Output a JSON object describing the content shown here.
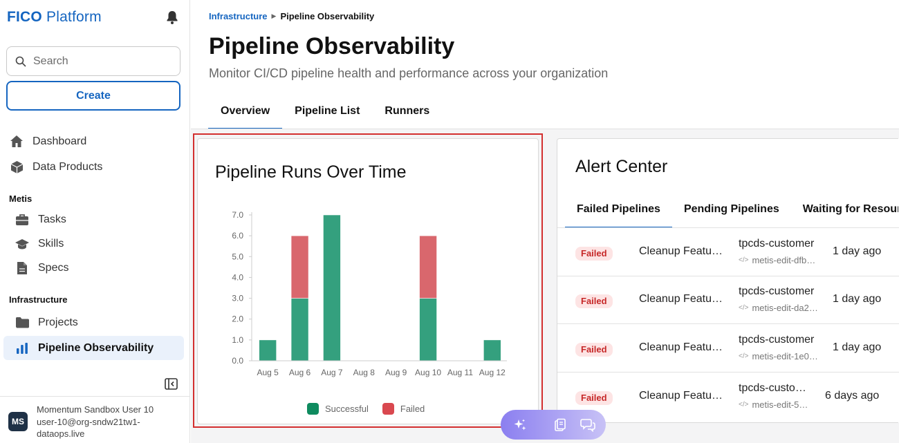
{
  "app": {
    "brand_bold": "FICO",
    "brand_rest": "Platform"
  },
  "sidebar": {
    "search_placeholder": "Search",
    "create_label": "Create",
    "top_items": [
      {
        "label": "Dashboard",
        "icon": "home-icon"
      },
      {
        "label": "Data Products",
        "icon": "cube-icon"
      }
    ],
    "sections": [
      {
        "label": "Metis",
        "items": [
          {
            "label": "Tasks",
            "icon": "briefcase-icon"
          },
          {
            "label": "Skills",
            "icon": "graduation-cap-icon"
          },
          {
            "label": "Specs",
            "icon": "document-icon"
          }
        ]
      },
      {
        "label": "Infrastructure",
        "items": [
          {
            "label": "Projects",
            "icon": "folder-icon"
          },
          {
            "label": "Pipeline Observability",
            "icon": "bar-chart-icon",
            "active": true
          }
        ]
      }
    ],
    "user": {
      "initials": "MS",
      "name": "Momentum Sandbox User 10",
      "email": "user-10@org-sndw21tw1-dataops.live"
    }
  },
  "breadcrumb": {
    "parent": "Infrastructure",
    "current": "Pipeline Observability"
  },
  "page": {
    "title": "Pipeline Observability",
    "subtitle": "Monitor CI/CD pipeline health and performance across your organization",
    "tabs": [
      "Overview",
      "Pipeline List",
      "Runners"
    ],
    "active_tab": "Overview"
  },
  "chart_card": {
    "title": "Pipeline Runs Over Time"
  },
  "chart_data": {
    "type": "bar",
    "stacked": true,
    "title": "Pipeline Runs Over Time",
    "categories": [
      "Aug 5",
      "Aug 6",
      "Aug 7",
      "Aug 8",
      "Aug 9",
      "Aug 10",
      "Aug 11",
      "Aug 12"
    ],
    "series": [
      {
        "name": "Successful",
        "values": [
          1,
          3,
          7,
          0,
          0,
          3,
          0,
          1
        ],
        "color": "#34a07e"
      },
      {
        "name": "Failed",
        "values": [
          0,
          3,
          0,
          0,
          0,
          3,
          0,
          0
        ],
        "color": "#d9676d"
      }
    ],
    "ylim": [
      0,
      7
    ],
    "yticks": [
      "0.0",
      "1.0",
      "2.0",
      "3.0",
      "4.0",
      "5.0",
      "6.0",
      "7.0"
    ],
    "legend": "bottom",
    "legend_colors": [
      "#0f8b5f",
      "#d9484f"
    ]
  },
  "alert_center": {
    "title": "Alert Center",
    "tabs": [
      "Failed Pipelines",
      "Pending Pipelines",
      "Waiting for Resources"
    ],
    "active_tab": "Failed Pipelines",
    "rows": [
      {
        "status": "Failed",
        "name": "Cleanup Feature Branch",
        "pipeline": "tpcds-customer",
        "branch": "metis-edit-dfb",
        "time": "1 day ago"
      },
      {
        "status": "Failed",
        "name": "Cleanup Feature Branch",
        "pipeline": "tpcds-customer",
        "branch": "metis-edit-da2",
        "time": "1 day ago"
      },
      {
        "status": "Failed",
        "name": "Cleanup Feature Branch",
        "pipeline": "tpcds-customer",
        "branch": "metis-edit-1e0",
        "time": "1 day ago"
      },
      {
        "status": "Failed",
        "name": "Cleanup Feature Branch",
        "pipeline": "tpcds-customer",
        "branch": "metis-edit-5",
        "time": "6 days ago"
      }
    ]
  },
  "colors": {
    "accent": "#1565c0",
    "successful": "#34a07e",
    "failed": "#d9676d",
    "highlight": "#d32f2f"
  }
}
